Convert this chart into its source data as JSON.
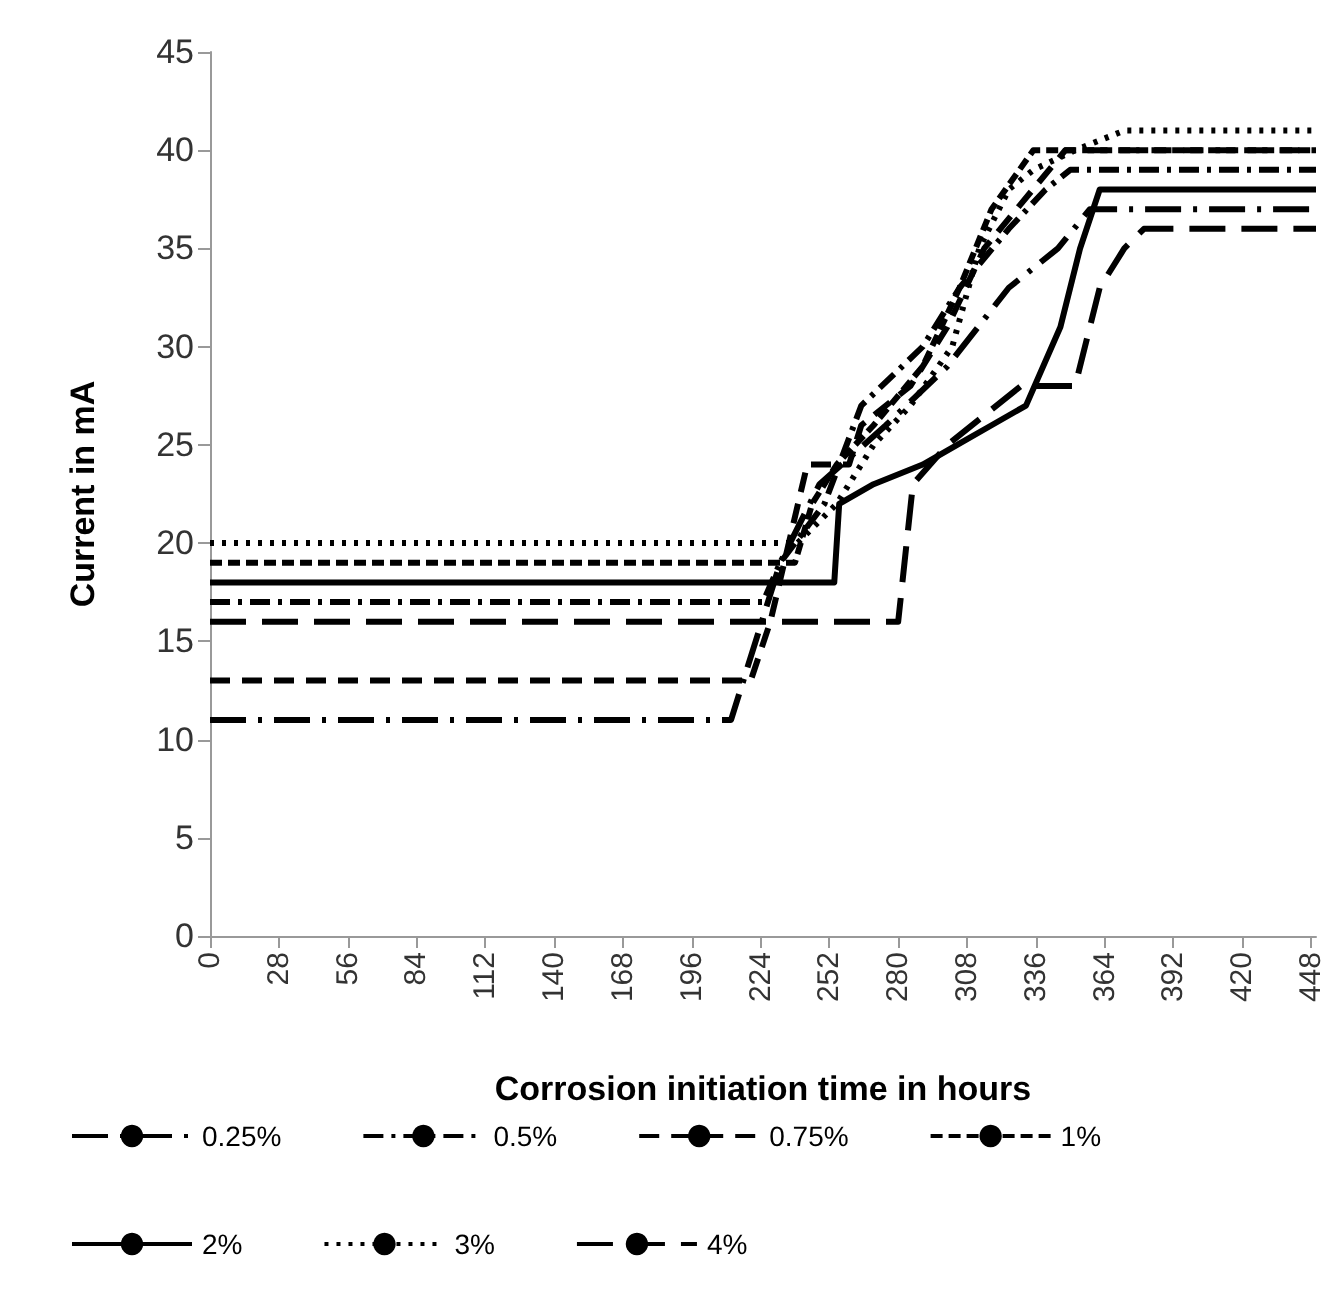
{
  "chart_data": {
    "type": "line",
    "xlabel": "Corrosion initiation time in hours",
    "ylabel": "Current in mA",
    "xlim": [
      0,
      450
    ],
    "xticks": [
      0,
      28,
      56,
      84,
      112,
      140,
      168,
      196,
      224,
      252,
      280,
      308,
      336,
      364,
      392,
      420,
      448
    ],
    "ylim": [
      0,
      45
    ],
    "yticks": [
      0,
      5,
      10,
      15,
      20,
      25,
      30,
      35,
      40,
      45
    ],
    "grid": false,
    "legend": "bottom",
    "marker": "none",
    "series": [
      {
        "name": "0.25%",
        "color": "#000000",
        "line_style": "longdashdot",
        "x": [
          0,
          212,
          222,
          232,
          248,
          275,
          300,
          325,
          345,
          358,
          450
        ],
        "values": [
          11,
          11,
          15,
          19,
          23,
          26,
          29,
          33,
          35,
          37,
          37
        ]
      },
      {
        "name": "0.5%",
        "color": "#000000",
        "line_style": "dashdot",
        "x": [
          0,
          225,
          232,
          250,
          265,
          290,
          305,
          325,
          340,
          350,
          450
        ],
        "values": [
          17,
          17,
          19,
          22,
          27,
          30,
          33,
          36,
          38,
          39,
          39
        ]
      },
      {
        "name": "0.75%",
        "color": "#000000",
        "line_style": "dashed",
        "x": [
          0,
          220,
          228,
          243,
          260,
          265,
          285,
          300,
          315,
          348,
          450
        ],
        "values": [
          13,
          13,
          16,
          24,
          24,
          26,
          28,
          31,
          35,
          40,
          40
        ]
      },
      {
        "name": "1%",
        "color": "#000000",
        "line_style": "shortdash",
        "x": [
          0,
          238,
          245,
          255,
          270,
          290,
          305,
          318,
          335,
          450
        ],
        "values": [
          19,
          19,
          22,
          24,
          26,
          29,
          33,
          37,
          40,
          40
        ]
      },
      {
        "name": "2%",
        "color": "#000000",
        "line_style": "solid",
        "x": [
          0,
          254,
          256,
          270,
          290,
          304,
          318,
          332,
          346,
          354,
          362,
          450
        ],
        "values": [
          18,
          18,
          22,
          23,
          24,
          25,
          26,
          27,
          31,
          35,
          38,
          38
        ]
      },
      {
        "name": "3%",
        "color": "#000000",
        "line_style": "dotted",
        "x": [
          0,
          239,
          255,
          270,
          285,
          302,
          313,
          325,
          335,
          352,
          372,
          450
        ],
        "values": [
          20,
          20,
          22,
          25,
          27,
          30,
          35,
          38,
          39,
          40,
          41,
          41
        ]
      },
      {
        "name": "4%",
        "color": "#000000",
        "line_style": "longdash",
        "x": [
          0,
          280,
          286,
          300,
          330,
          352,
          362,
          372,
          380,
          450
        ],
        "values": [
          16,
          16,
          23,
          25,
          28,
          28,
          33,
          35,
          36,
          36
        ]
      }
    ]
  }
}
